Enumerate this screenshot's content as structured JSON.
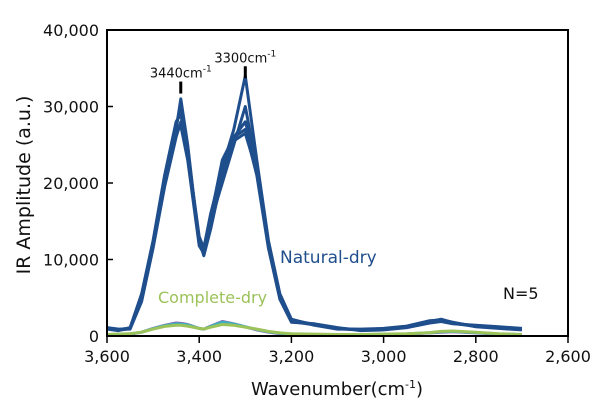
{
  "chart_data": {
    "type": "line",
    "title": "",
    "xlabel": "Wavenumber(cm",
    "xlabel_sup": "-1",
    "xlabel_close": ")",
    "ylabel": "IR Amplitude (a.u.)",
    "xlim": [
      3600,
      2600
    ],
    "ylim": [
      0,
      40000
    ],
    "xticks": [
      3600,
      3400,
      3200,
      3000,
      2800,
      2600
    ],
    "xtick_labels": [
      "3,600",
      "3,400",
      "3,200",
      "3,000",
      "2,800",
      "2,600"
    ],
    "yticks": [
      0,
      10000,
      20000,
      30000,
      40000
    ],
    "ytick_labels": [
      "0",
      "10,000",
      "20,000",
      "30,000",
      "40,000"
    ],
    "grid": false,
    "x": [
      3600,
      3575,
      3550,
      3525,
      3500,
      3475,
      3450,
      3440,
      3425,
      3400,
      3390,
      3375,
      3350,
      3325,
      3300,
      3275,
      3250,
      3225,
      3200,
      3150,
      3100,
      3050,
      3000,
      2950,
      2900,
      2875,
      2850,
      2800,
      2750,
      2700
    ],
    "series": [
      {
        "name": "Natural-dry 1",
        "group": "Natural-dry",
        "color": "#1f4e8c",
        "values": [
          1000,
          800,
          1000,
          5000,
          12000,
          20000,
          27000,
          31000,
          25000,
          12000,
          11000,
          15000,
          20000,
          25000,
          30000,
          22000,
          12000,
          5000,
          2000,
          1500,
          1000,
          800,
          900,
          1200,
          1800,
          2000,
          1700,
          1300,
          1100,
          900
        ]
      },
      {
        "name": "Natural-dry 2",
        "group": "Natural-dry",
        "color": "#1f4e8c",
        "values": [
          900,
          700,
          1100,
          5500,
          12500,
          21000,
          28000,
          29000,
          24000,
          13000,
          11500,
          16000,
          22000,
          27000,
          34000,
          23000,
          12500,
          5500,
          2200,
          1400,
          900,
          900,
          1000,
          1300,
          2000,
          2100,
          1800,
          1200,
          1000,
          800
        ]
      },
      {
        "name": "Natural-dry 3",
        "group": "Natural-dry",
        "color": "#1f4e8c",
        "values": [
          1100,
          900,
          900,
          4500,
          11500,
          19500,
          26000,
          28000,
          23500,
          12500,
          10500,
          14000,
          21000,
          26000,
          27000,
          21000,
          11500,
          4800,
          1800,
          1600,
          1100,
          700,
          800,
          1100,
          1700,
          1900,
          1600,
          1400,
          1200,
          1000
        ]
      },
      {
        "name": "Natural-dry 4",
        "group": "Natural-dry",
        "color": "#1f4e8c",
        "values": [
          1000,
          850,
          1050,
          5200,
          12200,
          20500,
          27500,
          30000,
          24500,
          12000,
          11200,
          15500,
          23000,
          26000,
          28000,
          22500,
          12200,
          5200,
          2100,
          1500,
          1000,
          850,
          950,
          1250,
          1900,
          2200,
          1750,
          1300,
          1100,
          950
        ]
      },
      {
        "name": "Natural-dry 5",
        "group": "Natural-dry",
        "color": "#1f4e8c",
        "values": [
          950,
          750,
          950,
          4800,
          11800,
          19800,
          26500,
          27500,
          23000,
          11800,
          10800,
          14500,
          20500,
          25500,
          26500,
          21500,
          11800,
          4900,
          1900,
          1450,
          950,
          800,
          850,
          1150,
          1750,
          1950,
          1650,
          1250,
          1050,
          850
        ]
      },
      {
        "name": "Complete-dry 1",
        "group": "Complete-dry",
        "color": "#8a5fb0",
        "values": [
          150,
          200,
          250,
          500,
          1000,
          1400,
          1700,
          1650,
          1500,
          1000,
          900,
          1300,
          1900,
          1600,
          1200,
          800,
          500,
          300,
          200,
          150,
          150,
          150,
          200,
          250,
          400,
          500,
          550,
          400,
          250,
          150
        ]
      },
      {
        "name": "Complete-dry 2",
        "group": "Complete-dry",
        "color": "#3bb0c0",
        "values": [
          180,
          230,
          280,
          500,
          950,
          1350,
          1600,
          1550,
          1450,
          1000,
          900,
          1250,
          1800,
          1550,
          1200,
          850,
          550,
          350,
          250,
          200,
          180,
          180,
          230,
          280,
          430,
          550,
          600,
          450,
          280,
          180
        ]
      },
      {
        "name": "Complete-dry 3",
        "group": "Complete-dry",
        "color": "#9cc25a",
        "values": [
          200,
          250,
          300,
          500,
          900,
          1250,
          1400,
          1400,
          1300,
          1000,
          900,
          1150,
          1500,
          1400,
          1150,
          900,
          600,
          400,
          300,
          250,
          200,
          200,
          250,
          300,
          450,
          600,
          650,
          500,
          300,
          200
        ]
      }
    ],
    "annotations": [
      {
        "text": "3440cm",
        "sup": "-1",
        "x": 3440,
        "y": 33000
      },
      {
        "text": "3300cm",
        "sup": "-1",
        "x": 3300,
        "y": 35000
      }
    ],
    "legend_labels": [
      {
        "text": "Natural-dry",
        "color": "#1f4e8c"
      },
      {
        "text": "Complete-dry",
        "color": "#9cc25a"
      }
    ],
    "note": "N=5"
  }
}
